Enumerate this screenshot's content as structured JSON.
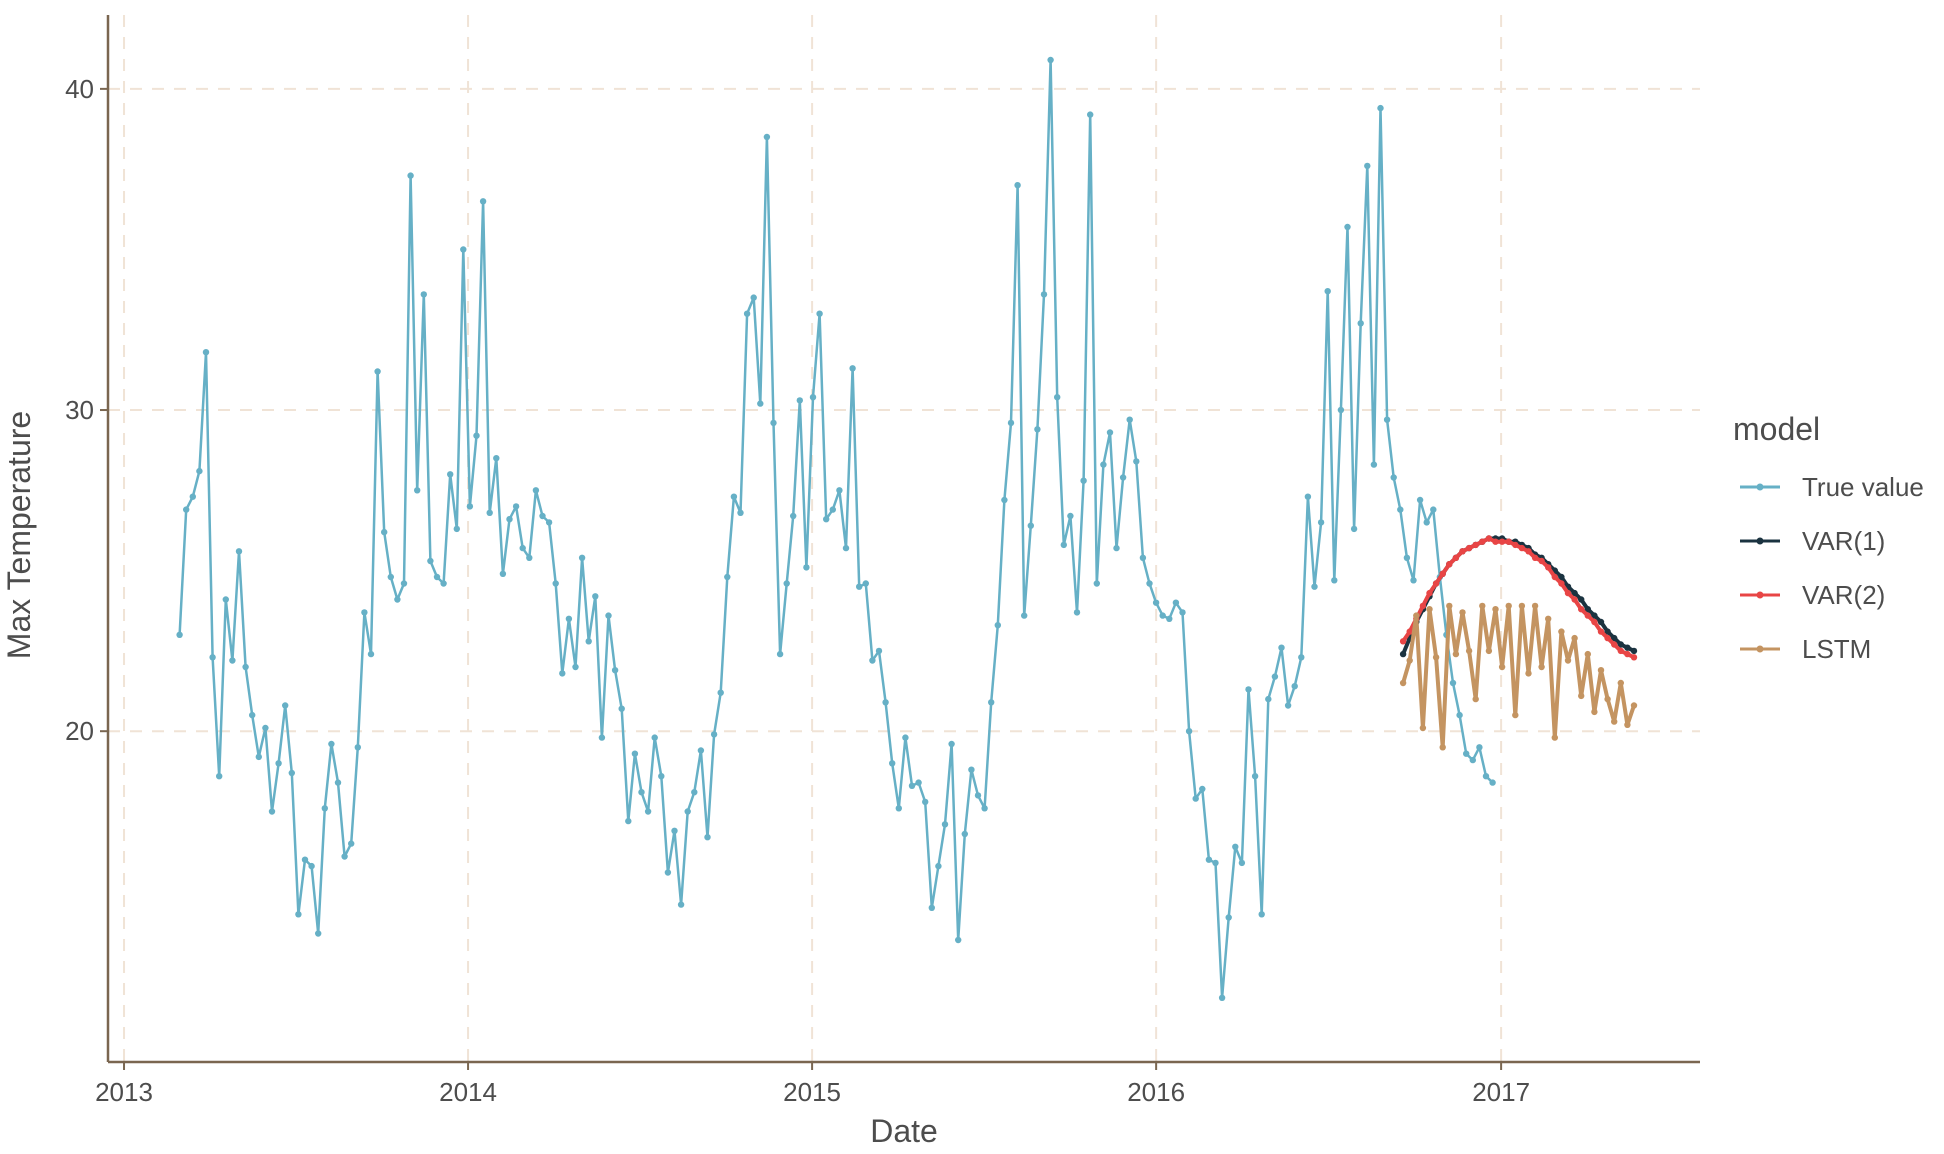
{
  "chart_data": {
    "type": "line",
    "title": "",
    "xlabel": "Date",
    "ylabel": "Max Temperature",
    "xlim": [
      "2012-12-15",
      "2017-07-31"
    ],
    "ylim": [
      9.7,
      42.3
    ],
    "x_ticks": [
      "2013",
      "2014",
      "2015",
      "2016",
      "2017"
    ],
    "y_ticks": [
      20,
      30,
      40
    ],
    "grid": true,
    "legend": {
      "title": "model",
      "position": "right"
    },
    "sampling": "weekly",
    "series": [
      {
        "name": "True value",
        "color": "#66b0c6",
        "start": "2013-03-01",
        "step_days": 7,
        "values": [
          23.0,
          26.9,
          27.3,
          28.1,
          31.8,
          22.3,
          18.6,
          24.1,
          22.2,
          25.6,
          22.0,
          20.5,
          19.2,
          20.1,
          17.5,
          19.0,
          20.8,
          18.7,
          14.3,
          16.0,
          15.8,
          13.7,
          17.6,
          19.6,
          18.4,
          16.1,
          16.5,
          19.5,
          23.7,
          22.4,
          31.2,
          26.2,
          24.8,
          24.1,
          24.6,
          37.3,
          27.5,
          33.6,
          25.3,
          24.8,
          24.6,
          28.0,
          26.3,
          35.0,
          27.0,
          29.2,
          36.5,
          26.8,
          28.5,
          24.9,
          26.6,
          27.0,
          25.7,
          25.4,
          27.5,
          26.7,
          26.5,
          24.6,
          21.8,
          23.5,
          22.0,
          25.4,
          22.8,
          24.2,
          19.8,
          23.6,
          21.9,
          20.7,
          17.2,
          19.3,
          18.1,
          17.5,
          19.8,
          18.6,
          15.6,
          16.9,
          14.6,
          17.5,
          18.1,
          19.4,
          16.7,
          19.9,
          21.2,
          24.8,
          27.3,
          26.8,
          33.0,
          33.5,
          30.2,
          38.5,
          29.6,
          22.4,
          24.6,
          26.7,
          30.3,
          25.1,
          30.4,
          33.0,
          26.6,
          26.9,
          27.5,
          25.7,
          31.3,
          24.5,
          24.6,
          22.2,
          22.5,
          20.9,
          19.0,
          17.6,
          19.8,
          18.3,
          18.4,
          17.8,
          14.5,
          15.8,
          17.1,
          19.6,
          13.5,
          16.8,
          18.8,
          18.0,
          17.6,
          20.9,
          23.3,
          27.2,
          29.6,
          37.0,
          23.6,
          26.4,
          29.4,
          33.6,
          40.9,
          30.4,
          25.8,
          26.7,
          23.7,
          27.8,
          39.2,
          24.6,
          28.3,
          29.3,
          25.7,
          27.9,
          29.7,
          28.4,
          25.4,
          24.6,
          24.0,
          23.6,
          23.5,
          24.0,
          23.7,
          20.0,
          17.9,
          18.2,
          16.0,
          15.9,
          11.7,
          14.2,
          16.4,
          15.9,
          21.3,
          18.6,
          14.3,
          21.0,
          21.7,
          22.6,
          20.8,
          21.4,
          22.3,
          27.3,
          24.5,
          26.5,
          33.7,
          24.7,
          30.0,
          35.7,
          26.3,
          32.7,
          37.6,
          28.3,
          39.4,
          29.7,
          27.9,
          26.9,
          25.4,
          24.7,
          27.2,
          26.5,
          26.9,
          24.8,
          23.0,
          21.5,
          20.5,
          19.3,
          19.1,
          19.5,
          18.6,
          18.4
        ]
      },
      {
        "name": "VAR(1)",
        "color": "#1b3340",
        "start": "2016-09-19",
        "step_days": 7,
        "values": [
          22.4,
          22.9,
          23.4,
          23.8,
          24.2,
          24.6,
          24.9,
          25.2,
          25.4,
          25.6,
          25.7,
          25.8,
          25.9,
          26.0,
          26.0,
          26.0,
          25.9,
          25.9,
          25.8,
          25.7,
          25.5,
          25.4,
          25.2,
          25.0,
          24.8,
          24.5,
          24.3,
          24.1,
          23.8,
          23.6,
          23.4,
          23.1,
          22.9,
          22.7,
          22.6,
          22.5
        ]
      },
      {
        "name": "VAR(2)",
        "color": "#e84545",
        "start": "2016-09-19",
        "step_days": 7,
        "values": [
          22.8,
          23.1,
          23.5,
          23.9,
          24.3,
          24.6,
          24.9,
          25.2,
          25.4,
          25.6,
          25.7,
          25.8,
          25.9,
          26.0,
          25.9,
          25.9,
          25.9,
          25.8,
          25.7,
          25.6,
          25.4,
          25.3,
          25.1,
          24.8,
          24.6,
          24.3,
          24.1,
          23.8,
          23.6,
          23.4,
          23.1,
          22.9,
          22.7,
          22.5,
          22.4,
          22.3
        ]
      },
      {
        "name": "LSTM",
        "color": "#c49461",
        "start": "2016-09-19",
        "step_days": 7,
        "values": [
          21.5,
          22.2,
          23.6,
          20.1,
          23.8,
          22.3,
          19.5,
          23.9,
          22.4,
          23.7,
          22.5,
          21.0,
          23.9,
          22.5,
          23.8,
          22.0,
          23.9,
          20.5,
          23.9,
          21.8,
          23.9,
          22.0,
          23.5,
          19.8,
          23.1,
          22.2,
          22.9,
          21.1,
          22.4,
          20.6,
          21.9,
          21.0,
          20.3,
          21.5,
          20.2,
          20.8
        ]
      }
    ]
  }
}
